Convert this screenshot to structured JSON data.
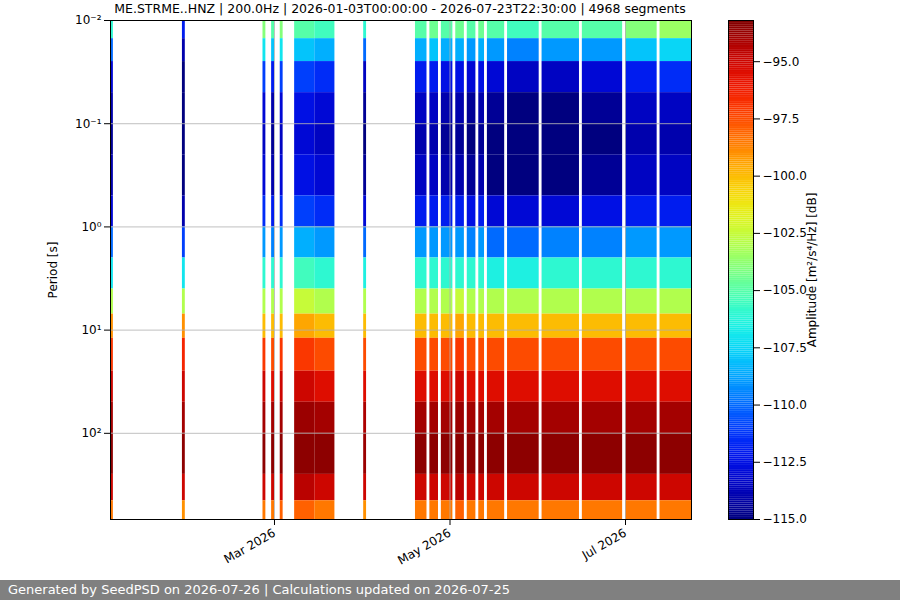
{
  "chart_data": {
    "type": "heatmap",
    "title": "ME.STRME..HNZ | 200.0Hz | 2026-01-03T00:00:00 - 2026-07-23T22:30:00 | 4968 segments",
    "y_label": "Period [s]",
    "footer": "Generated by SeedPSD on 2026-07-26 | Calculations updated on 2026-07-25",
    "log": "y",
    "grid": true,
    "color": "jet",
    "xlim": [
      "2026-01-03T00:00:00Z",
      "2026-07-23T22:30:00Z"
    ],
    "xticks": [
      {
        "value": "2026-03-01T00:00:00Z",
        "label": "Mar 2026"
      },
      {
        "value": "2026-05-01T00:00:00Z",
        "label": "May 2026"
      },
      {
        "value": "2026-07-01T00:00:00Z",
        "label": "Jul 2026"
      }
    ],
    "ylim": [
      0.01,
      684
    ],
    "yticks": [
      {
        "value": 0.01,
        "label": "10⁻²"
      },
      {
        "value": 0.1,
        "label": "10⁻¹"
      },
      {
        "value": 1,
        "label": "10⁰"
      },
      {
        "value": 10,
        "label": "10¹"
      },
      {
        "value": 100,
        "label": "10²"
      }
    ],
    "y_bins": [
      0.01,
      0.015,
      0.025,
      0.05,
      0.1,
      0.2,
      0.5,
      1,
      2,
      4,
      7,
      12,
      25,
      50,
      100,
      250,
      450,
      684
    ],
    "colorbar": {
      "label": "Amplitude [m²/s⁴/Hz] [dB]",
      "range": [
        -115,
        -93.2
      ],
      "ticks": [
        {
          "value": -115,
          "label": "−115.0"
        },
        {
          "value": -112.5,
          "label": "−112.5"
        },
        {
          "value": -110,
          "label": "−110.0"
        },
        {
          "value": -107.5,
          "label": "−107.5"
        },
        {
          "value": -105,
          "label": "−105.0"
        },
        {
          "value": -102.5,
          "label": "−102.5"
        },
        {
          "value": -100,
          "label": "−100.0"
        },
        {
          "value": -97.5,
          "label": "−97.5"
        },
        {
          "value": -95,
          "label": "−95.0"
        }
      ]
    },
    "segments": [
      {
        "start": "2026-01-03T00:00:00Z",
        "end": "2026-01-04T00:00:00Z",
        "values": [
          -106,
          -110,
          -113,
          -114,
          -114.5,
          -114,
          -113,
          -110,
          -107,
          -103,
          -99,
          -97,
          -95,
          -94,
          -93.5,
          -95,
          -98.5
        ]
      },
      {
        "start": "2026-01-28T00:00:00Z",
        "end": "2026-01-29T00:00:00Z",
        "values": [
          -112,
          -114,
          -115,
          -115,
          -115,
          -115,
          -114,
          -111,
          -107,
          -103,
          -99,
          -96.5,
          -95,
          -94,
          -93.5,
          -95,
          -99
        ]
      },
      {
        "start": "2026-02-25T00:00:00Z",
        "end": "2026-02-26T00:00:00Z",
        "values": [
          -104,
          -107,
          -111,
          -113,
          -113.5,
          -113,
          -111.5,
          -109,
          -106,
          -103,
          -100,
          -97,
          -95,
          -94,
          -93.5,
          -95,
          -98.5
        ]
      },
      {
        "start": "2026-02-28T00:00:00Z",
        "end": "2026-03-01T00:00:00Z",
        "values": [
          -105,
          -108,
          -112,
          -114,
          -114.5,
          -114,
          -112,
          -109.5,
          -106,
          -103,
          -100,
          -97.5,
          -95.5,
          -94,
          -93.5,
          -95,
          -98.5
        ]
      },
      {
        "start": "2026-03-03T00:00:00Z",
        "end": "2026-03-04T00:00:00Z",
        "values": [
          -104,
          -107,
          -111,
          -113,
          -113.5,
          -113,
          -111.5,
          -109,
          -106,
          -103,
          -100,
          -97,
          -95,
          -94,
          -93.5,
          -95,
          -98
        ]
      },
      {
        "start": "2026-03-08T00:00:00Z",
        "end": "2026-03-15T00:00:00Z",
        "values": [
          -105,
          -108,
          -111,
          -112.5,
          -113,
          -112.5,
          -111,
          -108.5,
          -105.5,
          -102.5,
          -99.5,
          -97,
          -95,
          -93.8,
          -93.5,
          -94.5,
          -98
        ]
      },
      {
        "start": "2026-03-15T00:00:00Z",
        "end": "2026-03-22T00:00:00Z",
        "values": [
          -105.5,
          -108.5,
          -111.5,
          -113,
          -113.5,
          -113,
          -111.5,
          -109,
          -106,
          -103,
          -100,
          -97.5,
          -95.5,
          -94,
          -93.5,
          -95,
          -98.5
        ]
      },
      {
        "start": "2026-04-01T00:00:00Z",
        "end": "2026-04-02T00:00:00Z",
        "values": [
          -106,
          -110,
          -113.5,
          -114.5,
          -115,
          -114.5,
          -113,
          -110,
          -106.5,
          -103,
          -100,
          -97.5,
          -95.5,
          -94.2,
          -93.8,
          -95,
          -99
        ]
      },
      {
        "start": "2026-04-19T00:00:00Z",
        "end": "2026-04-23T00:00:00Z",
        "values": [
          -105,
          -108.5,
          -112,
          -113.5,
          -114,
          -113.5,
          -112,
          -109,
          -106,
          -103,
          -100,
          -97.5,
          -95.5,
          -94,
          -93.5,
          -95,
          -98.5
        ]
      },
      {
        "start": "2026-04-24T00:00:00Z",
        "end": "2026-04-27T00:00:00Z",
        "values": [
          -104.5,
          -108,
          -112,
          -113.5,
          -114,
          -113.5,
          -112,
          -109,
          -106,
          -103,
          -100,
          -97.5,
          -95.5,
          -94,
          -93.5,
          -95,
          -98.5
        ]
      },
      {
        "start": "2026-04-28T00:00:00Z",
        "end": "2026-05-02T00:00:00Z",
        "values": [
          -105,
          -108.5,
          -112.5,
          -114,
          -114.5,
          -114,
          -112,
          -109,
          -106,
          -103,
          -100,
          -97.5,
          -95.5,
          -94,
          -93.5,
          -95,
          -98.5
        ]
      },
      {
        "start": "2026-05-03T00:00:00Z",
        "end": "2026-05-06T00:00:00Z",
        "values": [
          -104.5,
          -108.5,
          -112.5,
          -114,
          -114.5,
          -114,
          -112,
          -109,
          -106,
          -102.5,
          -99.5,
          -97,
          -95,
          -93.8,
          -93.5,
          -94.5,
          -98
        ]
      },
      {
        "start": "2026-05-07T00:00:00Z",
        "end": "2026-05-10T00:00:00Z",
        "values": [
          -105,
          -109,
          -113,
          -114.5,
          -115,
          -114.5,
          -112.5,
          -109.5,
          -106,
          -103,
          -100,
          -97.5,
          -95.5,
          -94,
          -93.5,
          -95,
          -98.5
        ]
      },
      {
        "start": "2026-05-11T00:00:00Z",
        "end": "2026-05-13T00:00:00Z",
        "values": [
          -104.5,
          -108.5,
          -112.5,
          -114,
          -114.5,
          -114,
          -112,
          -109,
          -106,
          -103,
          -100,
          -97.5,
          -95.5,
          -94,
          -93.5,
          -95,
          -98.5
        ]
      },
      {
        "start": "2026-05-14T00:00:00Z",
        "end": "2026-05-20T00:00:00Z",
        "values": [
          -105,
          -109,
          -113,
          -114.5,
          -115,
          -115,
          -113,
          -110,
          -106.5,
          -103,
          -100,
          -97.5,
          -95.5,
          -94,
          -93.5,
          -95,
          -98.5
        ]
      },
      {
        "start": "2026-05-21T00:00:00Z",
        "end": "2026-06-01T00:00:00Z",
        "values": [
          -105.5,
          -109.5,
          -113.5,
          -115,
          -115,
          -115,
          -113,
          -110,
          -106.5,
          -103,
          -100,
          -97.5,
          -95.5,
          -94,
          -93.5,
          -95,
          -98.5
        ]
      },
      {
        "start": "2026-06-02T00:00:00Z",
        "end": "2026-06-15T00:00:00Z",
        "values": [
          -105,
          -109,
          -113.5,
          -115,
          -115,
          -115,
          -113,
          -109.5,
          -106,
          -103,
          -100,
          -97.5,
          -95.5,
          -94,
          -93.5,
          -95,
          -98.5
        ]
      },
      {
        "start": "2026-06-16T00:00:00Z",
        "end": "2026-06-30T00:00:00Z",
        "values": [
          -105,
          -109,
          -113,
          -114.5,
          -115,
          -114.5,
          -112.5,
          -109.5,
          -106,
          -103,
          -100,
          -97.5,
          -95.5,
          -94,
          -93.5,
          -95,
          -98.5
        ]
      },
      {
        "start": "2026-07-01T00:00:00Z",
        "end": "2026-07-12T00:00:00Z",
        "values": [
          -104,
          -108,
          -112,
          -113.5,
          -114,
          -113.5,
          -112,
          -109,
          -106,
          -103,
          -100,
          -97.5,
          -95.5,
          -94,
          -93.5,
          -95,
          -98.5
        ]
      },
      {
        "start": "2026-07-13T00:00:00Z",
        "end": "2026-07-23T22:30:00Z",
        "values": [
          -103.5,
          -107.5,
          -111.5,
          -113.5,
          -114,
          -113.5,
          -112,
          -109,
          -106,
          -103,
          -100,
          -97.5,
          -95.5,
          -94,
          -93.5,
          -95,
          -98.5
        ]
      }
    ]
  }
}
